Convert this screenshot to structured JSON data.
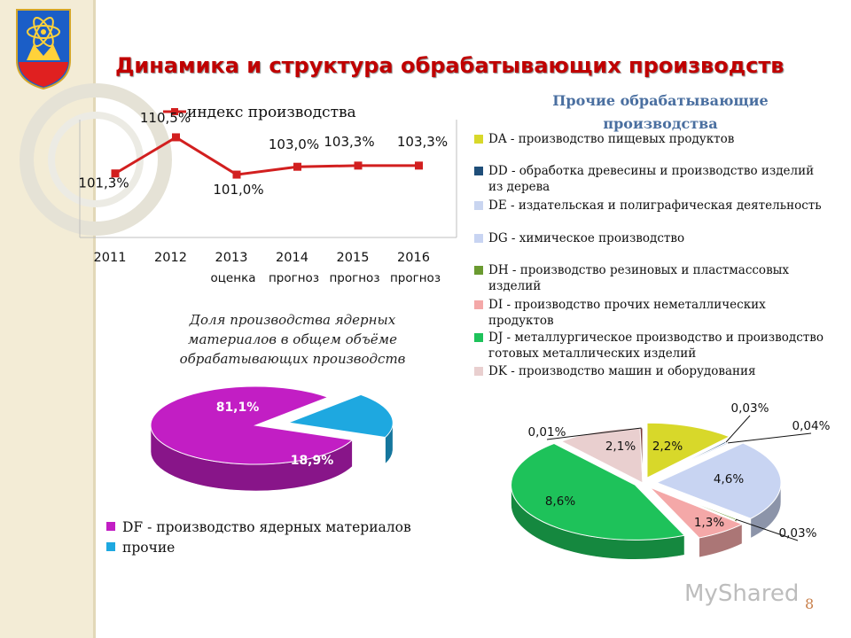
{
  "slide": {
    "title": "Динамика и структура обрабатывающих производств",
    "page_number": "8",
    "watermark": "MyShared"
  },
  "colors": {
    "title": "#c00000",
    "line": "#d21f1f",
    "nuclear_df": "#c21ec4",
    "nuclear_other": "#1ea8e0"
  },
  "chart_data": [
    {
      "type": "line",
      "legend": [
        "индекс производства"
      ],
      "categories": [
        "2011",
        "2012",
        "2013",
        "2014",
        "2015",
        "2016"
      ],
      "category_sublabels": [
        "",
        "",
        "оценка",
        "прогноз",
        "прогноз",
        "прогноз"
      ],
      "series": [
        {
          "name": "индекс производства",
          "values": [
            101.3,
            110.5,
            101.0,
            103.0,
            103.3,
            103.3
          ]
        }
      ],
      "data_labels": [
        "101,3%",
        "110,5%",
        "101,0%",
        "103,0%",
        "103,3%",
        "103,3%"
      ],
      "ylim": [
        85,
        115
      ]
    },
    {
      "type": "pie",
      "title": "Прочие обрабатывающие производства",
      "slices": [
        {
          "name": "DA - производство пищевых продуктов",
          "value": 2.2,
          "label": "2,2%",
          "color": "#d8d82a"
        },
        {
          "name": "DD - обработка древесины и производство изделий из дерева",
          "value": 0.03,
          "label": "0,03%",
          "color": "#1f4e79"
        },
        {
          "name": "DE - издательская и полиграфическая деятельность",
          "value": 0.04,
          "label": "0,04%",
          "color": "#c9d5f0"
        },
        {
          "name": "DG - химическое производство",
          "value": 4.6,
          "label": "4,6%",
          "color": "#c8d4f2"
        },
        {
          "name": "DH - производство резиновых и пластмассовых изделий",
          "value": 0.03,
          "label": "0,03%",
          "color": "#6a9a30"
        },
        {
          "name": "DI - производство прочих неметаллических продуктов",
          "value": 1.3,
          "label": "1,3%",
          "color": "#f4a8a8"
        },
        {
          "name": "DJ - металлургическое производство и производство готовых металлических изделий",
          "value": 8.6,
          "label": "8,6%",
          "color": "#1ec25a"
        },
        {
          "name": "DK - производство машин и оборудования",
          "value": 2.1,
          "label": "2,1%",
          "color": "#e9cfcf"
        },
        {
          "name": "",
          "value": 0.01,
          "label": "0,01%",
          "color": "#7a3b3b"
        }
      ]
    },
    {
      "type": "pie",
      "title": "Доля производства ядерных материалов в общем объёме обрабатывающих производств",
      "slices": [
        {
          "name": "DF - производство ядерных материалов",
          "value": 81.1,
          "label": "81,1%",
          "color": "#c21ec4"
        },
        {
          "name": "прочие",
          "value": 18.9,
          "label": "18,9%",
          "color": "#1ea8e0"
        }
      ]
    }
  ]
}
